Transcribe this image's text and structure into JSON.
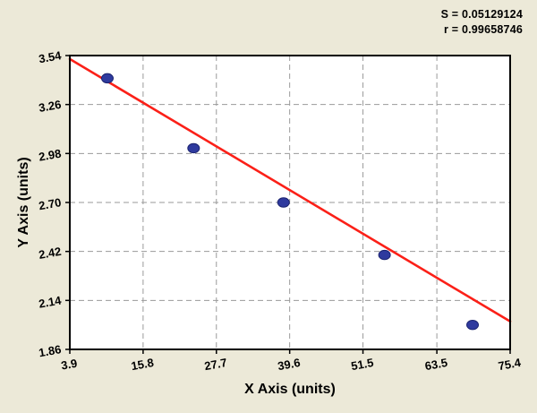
{
  "chart_data": {
    "type": "scatter",
    "title": "",
    "xlabel": "X Axis (units)",
    "ylabel": "Y Axis (units)",
    "xlim": [
      3.9,
      75.4
    ],
    "ylim": [
      1.86,
      3.54
    ],
    "x_ticks": [
      "3.9",
      "15.8",
      "27.7",
      "39.6",
      "51.5",
      "63.5",
      "75.4"
    ],
    "y_ticks": [
      "1.86",
      "2.14",
      "2.42",
      "2.70",
      "2.98",
      "3.26",
      "3.54"
    ],
    "grid": true,
    "legend": "none",
    "points": [
      {
        "x": 10.0,
        "y": 3.41
      },
      {
        "x": 24.0,
        "y": 3.01
      },
      {
        "x": 38.6,
        "y": 2.7
      },
      {
        "x": 55.0,
        "y": 2.4
      },
      {
        "x": 69.3,
        "y": 2.0
      }
    ],
    "fit_line": {
      "x1": 3.9,
      "y1": 3.52,
      "x2": 75.4,
      "y2": 2.02
    },
    "annotations": [
      "S = 0.05129124",
      "r = 0.99658746"
    ],
    "colors": {
      "background": "#ece9d8",
      "plot_background": "#ffffff",
      "grid": "#9a9a9a",
      "point": "#2f3a9e",
      "point_edge": "#1c2470",
      "line": "#fb2018",
      "axis": "#000000",
      "text": "#000000"
    }
  }
}
